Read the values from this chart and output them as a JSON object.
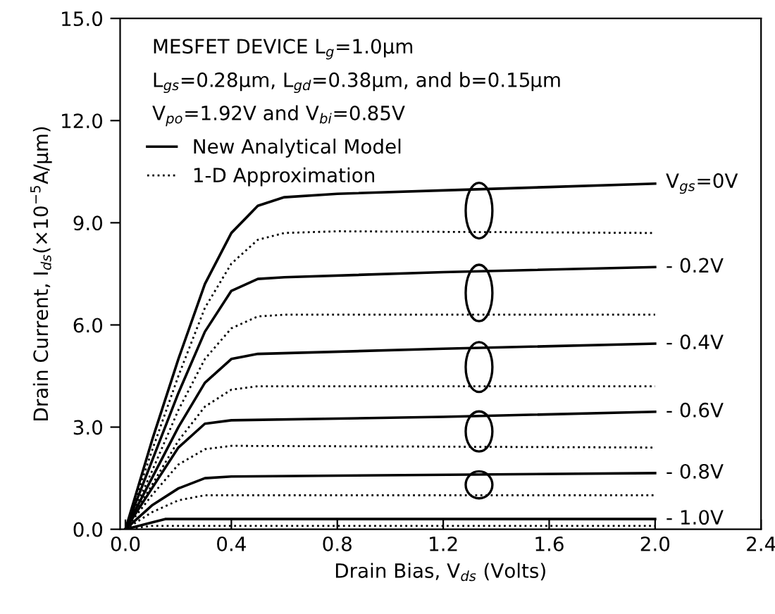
{
  "chart_data": {
    "type": "line",
    "xlabel": "Drain Bias, V$_{ds}$ (Volts)",
    "ylabel": "Drain Current, I$_{ds}$(×10$^{−5}$A/µm)",
    "xlim": [
      -0.02,
      2.4
    ],
    "ylim": [
      0,
      15
    ],
    "xticks": [
      {
        "value": 0,
        "label": "0.0"
      },
      0.4,
      0.8,
      1.2,
      1.6,
      {
        "value": 2,
        "label": "2.0"
      },
      2.4
    ],
    "yticks": [
      {
        "value": 0,
        "label": "0.0"
      },
      {
        "value": 3,
        "label": "3.0"
      },
      {
        "value": 6,
        "label": "6.0"
      },
      {
        "value": 9,
        "label": "9.0"
      },
      {
        "value": 12,
        "label": "12.0"
      },
      {
        "value": 15,
        "label": "15.0"
      }
    ],
    "grid": false,
    "legend": "top left",
    "marker": "none",
    "series": [
      {
        "name": "New Analytical Model",
        "color": "#000000",
        "line_style": "solid",
        "x": [
          0,
          0.1,
          0.2,
          0.3,
          0.4,
          0.5,
          0.6,
          0.8,
          1.2,
          1.6,
          2.0
        ],
        "values": [
          0,
          2.6,
          5.0,
          7.2,
          8.7,
          9.5,
          9.75,
          9.85,
          9.95,
          10.05,
          10.15
        ]
      },
      {
        "name": "1-D Approximation",
        "color": "#000000",
        "line_style": "dotted",
        "x": [
          0,
          0.1,
          0.2,
          0.3,
          0.4,
          0.5,
          0.6,
          0.8,
          2.0
        ],
        "values": [
          0,
          2.3,
          4.5,
          6.5,
          7.8,
          8.5,
          8.7,
          8.75,
          8.7
        ]
      },
      {
        "color": "#000000",
        "line_style": "solid",
        "x": [
          0,
          0.1,
          0.2,
          0.3,
          0.4,
          0.5,
          0.6,
          1.2,
          2.0
        ],
        "values": [
          0,
          2.0,
          4.0,
          5.8,
          7.0,
          7.35,
          7.4,
          7.55,
          7.7
        ]
      },
      {
        "color": "#000000",
        "line_style": "dotted",
        "x": [
          0,
          0.1,
          0.2,
          0.3,
          0.4,
          0.5,
          0.6,
          2.0
        ],
        "values": [
          0,
          1.7,
          3.5,
          5.0,
          5.9,
          6.25,
          6.3,
          6.3
        ]
      },
      {
        "color": "#000000",
        "line_style": "solid",
        "x": [
          0,
          0.1,
          0.2,
          0.3,
          0.4,
          0.5,
          1.2,
          2.0
        ],
        "values": [
          0,
          1.5,
          3.0,
          4.3,
          5.0,
          5.15,
          5.3,
          5.45
        ]
      },
      {
        "color": "#000000",
        "line_style": "dotted",
        "x": [
          0,
          0.1,
          0.2,
          0.3,
          0.4,
          0.5,
          2.0
        ],
        "values": [
          0,
          1.3,
          2.6,
          3.6,
          4.1,
          4.2,
          4.2
        ]
      },
      {
        "color": "#000000",
        "line_style": "solid",
        "x": [
          0,
          0.1,
          0.2,
          0.3,
          0.4,
          1.2,
          2.0
        ],
        "values": [
          0,
          1.2,
          2.4,
          3.1,
          3.2,
          3.3,
          3.45
        ]
      },
      {
        "color": "#000000",
        "line_style": "dotted",
        "x": [
          0,
          0.1,
          0.2,
          0.3,
          0.4,
          2.0
        ],
        "values": [
          0,
          1.0,
          1.9,
          2.35,
          2.45,
          2.4
        ]
      },
      {
        "color": "#000000",
        "line_style": "solid",
        "x": [
          0,
          0.1,
          0.2,
          0.3,
          0.4,
          2.0
        ],
        "values": [
          0,
          0.7,
          1.2,
          1.5,
          1.55,
          1.65
        ]
      },
      {
        "color": "#000000",
        "line_style": "dotted",
        "x": [
          0,
          0.1,
          0.2,
          0.3,
          2.0
        ],
        "values": [
          0,
          0.5,
          0.85,
          1.0,
          1.0
        ]
      },
      {
        "color": "#000000",
        "line_style": "solid",
        "x": [
          0,
          0.1,
          0.15,
          2.0
        ],
        "values": [
          0,
          0.2,
          0.3,
          0.3
        ]
      },
      {
        "color": "#000000",
        "line_style": "dotted",
        "x": [
          0,
          0.1,
          2.0
        ],
        "values": [
          0,
          0.1,
          0.1
        ]
      }
    ],
    "annotations": [
      "MESFET DEVICE L$_{g}$=1.0µm",
      "L$_{gs}$=0.28µm, L$_{gd}$=0.38µm, and b=0.15µm",
      "V$_{po}$=1.92V and V$_{bi}$=0.85V",
      "V$_{gs}$=0V",
      "- 0.2V",
      "- 0.4V",
      "- 0.6V",
      "- 0.8V",
      "- 1.0V"
    ]
  }
}
